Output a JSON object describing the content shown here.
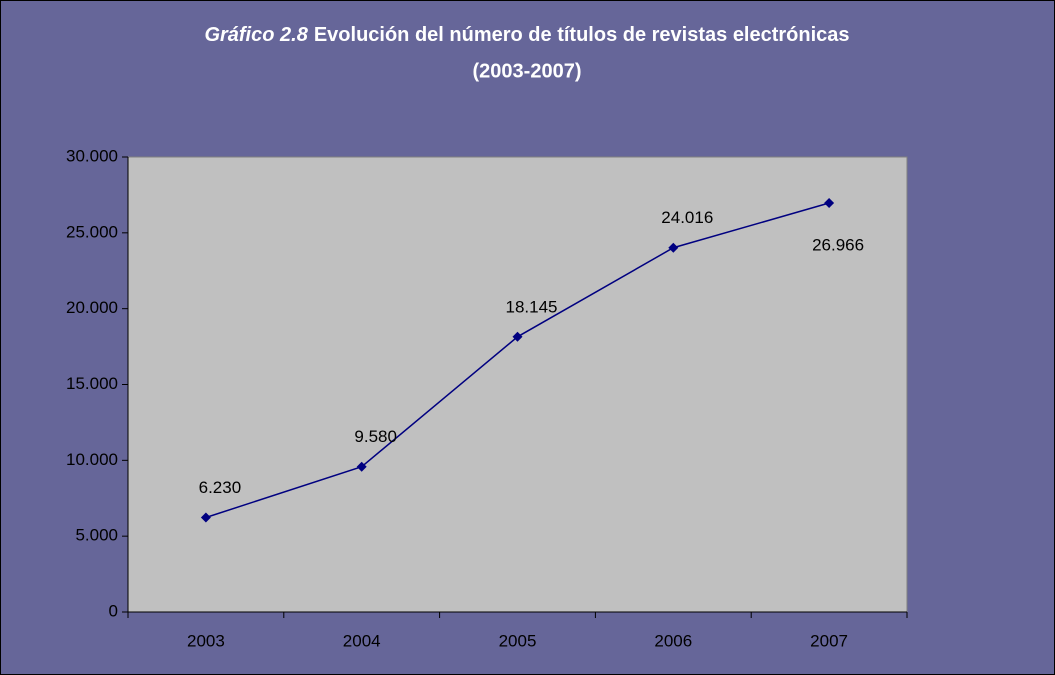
{
  "chart_data": {
    "type": "line",
    "title_label": "Gráfico 2.8",
    "title": "Evolución del número de títulos de revistas electrónicas",
    "subtitle": "(2003-2007)",
    "categories": [
      "2003",
      "2004",
      "2005",
      "2006",
      "2007"
    ],
    "series": [
      {
        "color": "#000080",
        "values": [
          6230,
          9580,
          18145,
          24016,
          26966
        ],
        "value_labels": [
          "6.230",
          "9.580",
          "18.145",
          "24.016",
          "26.966"
        ]
      }
    ],
    "ylim": [
      0,
      30000
    ],
    "yticks": [
      0,
      {
        "value": 5000,
        "label": "5.000"
      },
      {
        "value": 10000,
        "label": "10.000"
      },
      {
        "value": 15000,
        "label": "15.000"
      },
      {
        "value": 20000,
        "label": "20.000"
      },
      {
        "value": 25000,
        "label": "25.000"
      },
      {
        "value": 30000,
        "label": "30.000"
      }
    ],
    "grid": false
  }
}
